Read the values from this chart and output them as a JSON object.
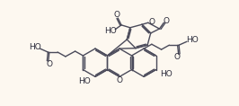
{
  "background_color": "#fdf8f0",
  "line_color": "#4a4a5a",
  "line_width": 1.0,
  "text_color": "#2a2a3a",
  "font_size": 6.5,
  "fig_width": 2.66,
  "fig_height": 1.18,
  "dpi": 100,
  "xlim": [
    0,
    266
  ],
  "ylim": [
    0,
    118
  ]
}
